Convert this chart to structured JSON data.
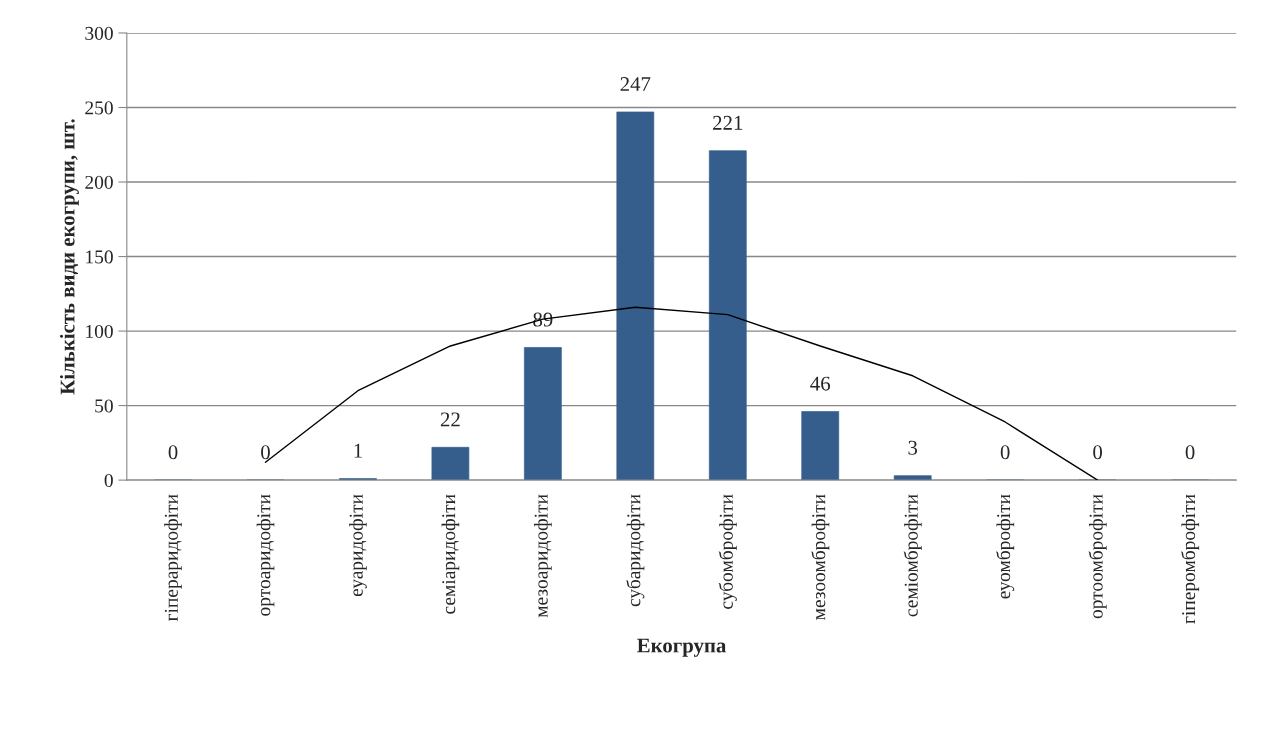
{
  "chart_data": {
    "type": "bar",
    "xlabel": "Екогрупа",
    "ylabel": "Кількість види екогрупи, шт.",
    "categories": [
      "гіпераридофіти",
      "ортоаридофіти",
      "еуаридофіти",
      "семіаридофіти",
      "мезоаридофіти",
      "субаридофіти",
      "субомброфіти",
      "мезоомброфіти",
      "семіомброфіти",
      "еуомброфіти",
      "ортоомброфіти",
      "гіперомброфіти"
    ],
    "series": [
      {
        "color": "#355e8d",
        "values": [
          0,
          0,
          1,
          22,
          89,
          247,
          221,
          46,
          3,
          0,
          0,
          0
        ],
        "value_labels": [
          "0",
          "0",
          "1",
          "22",
          "89",
          "247",
          "221",
          "46",
          "3",
          "0",
          "0",
          "0"
        ]
      },
      {
        "type": "line",
        "color": "#000000",
        "values": [
          null,
          12,
          60,
          90,
          108,
          116,
          111,
          90,
          70,
          39,
          0,
          null
        ]
      }
    ],
    "ylim": [
      0,
      300
    ],
    "yticks": [
      0,
      50,
      100,
      150,
      200,
      250,
      300
    ],
    "grid": "y",
    "legend": false
  }
}
